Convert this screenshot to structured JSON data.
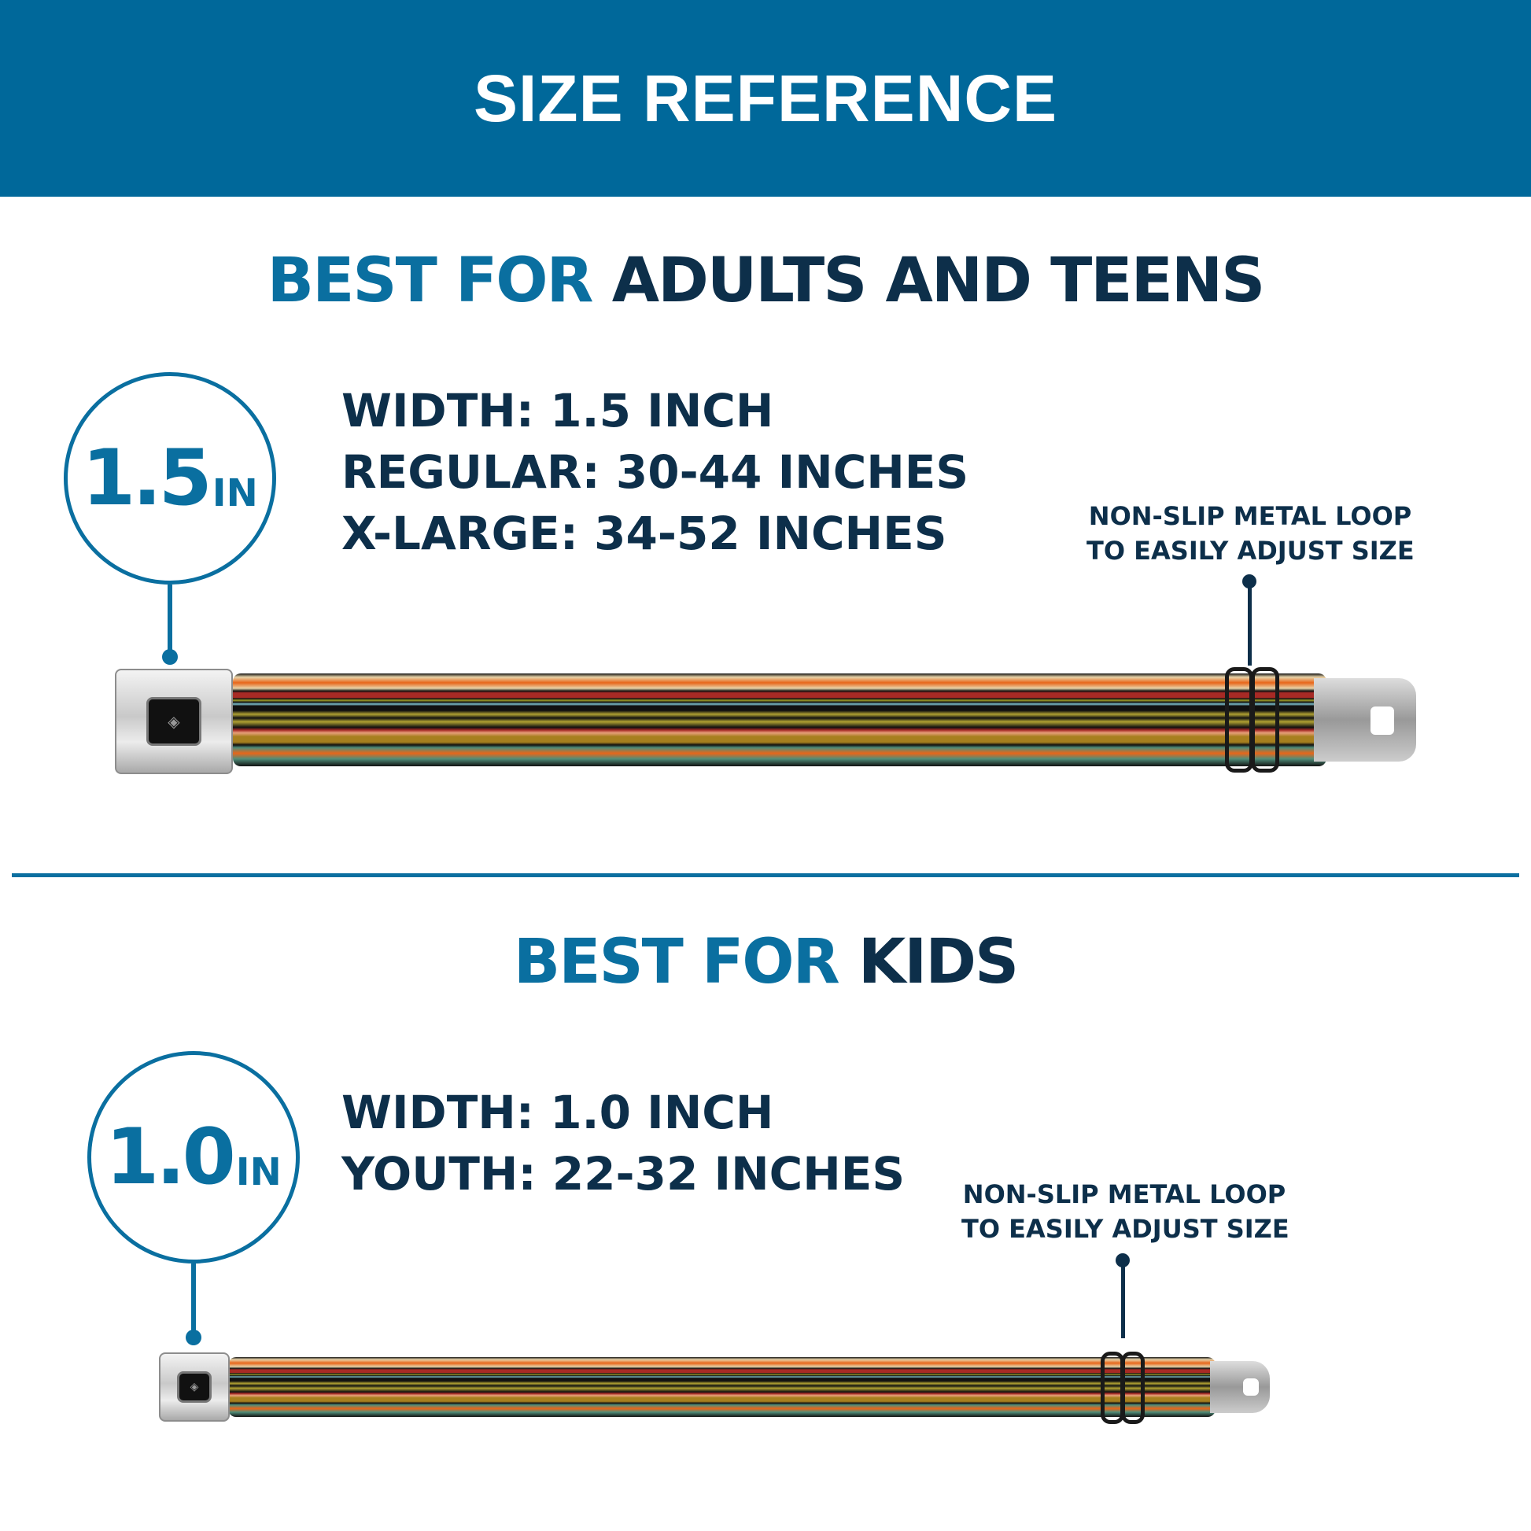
{
  "colors": {
    "header": "#00689A",
    "accent": "#0A6FA0",
    "dark": "#0D2F4A"
  },
  "header": {
    "title": "SIZE REFERENCE"
  },
  "adults": {
    "heading_accent": "BEST FOR",
    "heading_main": "ADULTS AND TEENS",
    "badge": {
      "value": "1.5",
      "unit": "IN"
    },
    "specs": [
      "WIDTH: 1.5 INCH",
      "REGULAR: 30-44 INCHES",
      "X-LARGE: 34-52 INCHES"
    ],
    "callout": [
      "NON-SLIP METAL LOOP",
      "TO EASILY ADJUST SIZE"
    ],
    "logo": "BD"
  },
  "kids": {
    "heading_accent": "BEST FOR",
    "heading_main": "KIDS",
    "badge": {
      "value": "1.0",
      "unit": "IN"
    },
    "specs": [
      "WIDTH: 1.0 INCH",
      "YOUTH: 22-32 INCHES"
    ],
    "callout": [
      "NON-SLIP METAL LOOP",
      "TO EASILY ADJUST SIZE"
    ],
    "logo": "BD"
  }
}
